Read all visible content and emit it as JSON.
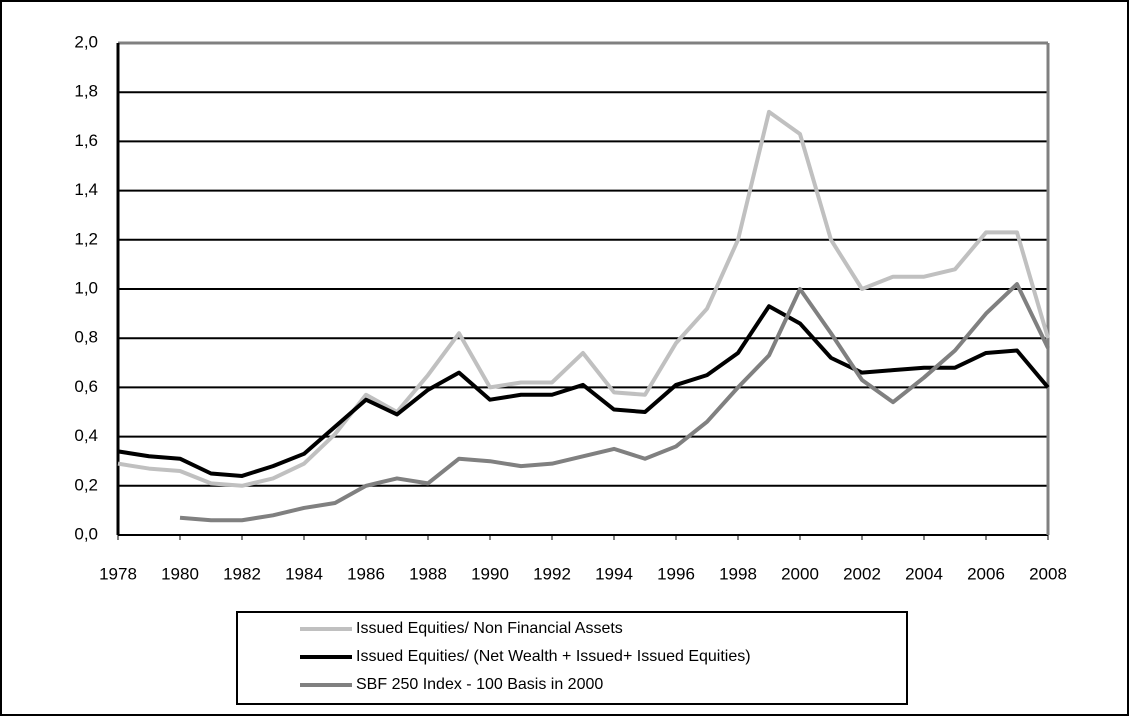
{
  "chart_data": {
    "type": "line",
    "x": [
      1978,
      1979,
      1980,
      1981,
      1982,
      1983,
      1984,
      1985,
      1986,
      1987,
      1988,
      1989,
      1990,
      1991,
      1992,
      1993,
      1994,
      1995,
      1996,
      1997,
      1998,
      1999,
      2000,
      2001,
      2002,
      2003,
      2004,
      2005,
      2006,
      2007,
      2008
    ],
    "series": [
      {
        "name": "Issued Equities/ Non Financial Assets",
        "color": "#c0c0c0",
        "values": [
          0.29,
          0.27,
          0.26,
          0.21,
          0.2,
          0.23,
          0.29,
          0.41,
          0.57,
          0.5,
          0.65,
          0.82,
          0.6,
          0.62,
          0.62,
          0.74,
          0.58,
          0.57,
          0.78,
          0.92,
          1.2,
          1.72,
          1.63,
          1.2,
          1.0,
          1.05,
          1.05,
          1.08,
          1.23,
          1.23,
          0.8
        ]
      },
      {
        "name": "Issued Equities/ (Net Wealth + Issued+ Issued Equities)",
        "color": "#000000",
        "values": [
          0.34,
          0.32,
          0.31,
          0.25,
          0.24,
          0.28,
          0.33,
          0.44,
          0.55,
          0.49,
          0.59,
          0.66,
          0.55,
          0.57,
          0.57,
          0.61,
          0.51,
          0.5,
          0.61,
          0.65,
          0.74,
          0.93,
          0.86,
          0.72,
          0.66,
          0.67,
          0.68,
          0.68,
          0.74,
          0.75,
          0.6
        ]
      },
      {
        "name": "SBF 250 Index - 100 Basis in 2000",
        "color": "#808080",
        "values": [
          null,
          null,
          0.07,
          0.06,
          0.06,
          0.08,
          0.11,
          0.13,
          0.2,
          0.23,
          0.21,
          0.31,
          0.3,
          0.28,
          0.29,
          0.32,
          0.35,
          0.31,
          0.36,
          0.46,
          0.6,
          0.73,
          1.0,
          0.82,
          0.63,
          0.54,
          0.64,
          0.75,
          0.9,
          1.02,
          0.76
        ]
      }
    ],
    "xlim": [
      1978,
      2008
    ],
    "xticks": [
      1978,
      1980,
      1982,
      1984,
      1986,
      1988,
      1990,
      1992,
      1994,
      1996,
      1998,
      2000,
      2002,
      2004,
      2006,
      2008
    ],
    "ylim": [
      0,
      2
    ],
    "yticks": [
      {
        "value": 0,
        "label": "0,0"
      },
      {
        "value": 0.2,
        "label": "0,2"
      },
      {
        "value": 0.4,
        "label": "0,4"
      },
      {
        "value": 0.6,
        "label": "0,6"
      },
      {
        "value": 0.8,
        "label": "0,8"
      },
      {
        "value": 1.0,
        "label": "1,0"
      },
      {
        "value": 1.2,
        "label": "1,2"
      },
      {
        "value": 1.4,
        "label": "1,4"
      },
      {
        "value": 1.6,
        "label": "1,6"
      },
      {
        "value": 1.8,
        "label": "1,8"
      },
      {
        "value": 2.0,
        "label": "2,0"
      }
    ],
    "grid": true
  }
}
